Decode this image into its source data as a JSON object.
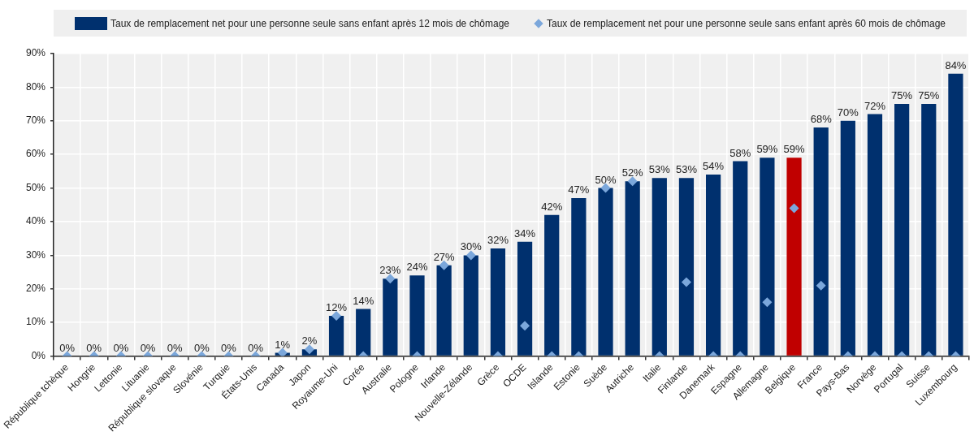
{
  "chart_data": {
    "type": "bar",
    "categories": [
      "République tchèque",
      "Hongrie",
      "Lettonie",
      "Lituanie",
      "République slovaque",
      "Slovénie",
      "Turquie",
      "États-Unis",
      "Canada",
      "Japon",
      "Royaume-Uni",
      "Corée",
      "Australie",
      "Pologne",
      "Irlande",
      "Nouvelle-Zélande",
      "Grèce",
      "OCDE",
      "Islande",
      "Estonie",
      "Suède",
      "Autriche",
      "Italie",
      "Finlande",
      "Danemark",
      "Espagne",
      "Allemagne",
      "Belgique",
      "France",
      "Pays-Bas",
      "Norvège",
      "Portugal",
      "Suisse",
      "Luxembourg"
    ],
    "series": [
      {
        "name": "Taux de remplacement net pour une personne seule sans enfant après 12 mois de chômage",
        "color": "#00306e",
        "colors": [
          "#00306e",
          "#00306e",
          "#00306e",
          "#00306e",
          "#00306e",
          "#00306e",
          "#00306e",
          "#00306e",
          "#00306e",
          "#00306e",
          "#00306e",
          "#00306e",
          "#00306e",
          "#00306e",
          "#00306e",
          "#00306e",
          "#00306e",
          "#00306e",
          "#00306e",
          "#00306e",
          "#00306e",
          "#00306e",
          "#00306e",
          "#00306e",
          "#00306e",
          "#00306e",
          "#00306e",
          "#c00000",
          "#00306e",
          "#00306e",
          "#00306e",
          "#00306e",
          "#00306e",
          "#00306e"
        ],
        "values": [
          0,
          0,
          0,
          0,
          0,
          0,
          0,
          0,
          1,
          2,
          12,
          14,
          23,
          24,
          27,
          30,
          32,
          34,
          42,
          47,
          50,
          52,
          53,
          53,
          54,
          58,
          59,
          59,
          68,
          70,
          72,
          75,
          75,
          84
        ],
        "value_labels": [
          "0%",
          "0%",
          "0%",
          "0%",
          "0%",
          "0%",
          "0%",
          "0%",
          "1%",
          "2%",
          "12%",
          "14%",
          "23%",
          "24%",
          "27%",
          "30%",
          "32%",
          "34%",
          "42%",
          "47%",
          "50%",
          "52%",
          "53%",
          "53%",
          "54%",
          "58%",
          "59%",
          "59%",
          "68%",
          "70%",
          "72%",
          "75%",
          "75%",
          "84%"
        ]
      },
      {
        "type": "scatter",
        "name": "Taux de remplacement net pour une personne seule sans enfant après 60 mois de chômage",
        "color": "#7ba7db",
        "marker": "diamond",
        "x": [
          "République tchèque",
          "Hongrie",
          "Lettonie",
          "Lituanie",
          "République slovaque",
          "Slovénie",
          "Turquie",
          "États-Unis",
          "Canada",
          "Japon",
          "Royaume-Uni",
          "Corée",
          "Australie",
          "Pologne",
          "Irlande",
          "Nouvelle-Zélande",
          "Grèce",
          "OCDE",
          "Islande",
          "Estonie",
          "Suède",
          "Autriche",
          "Italie",
          "Finlande",
          "Danemark",
          "Espagne",
          "Allemagne",
          "Belgique",
          "France",
          "Pays-Bas",
          "Norvège",
          "Portugal",
          "Suisse",
          "Luxembourg"
        ],
        "values": [
          0,
          0,
          0,
          0,
          0,
          0,
          0,
          0,
          1,
          2,
          12,
          0,
          23,
          0,
          27,
          30,
          0,
          9,
          0,
          0,
          50,
          52,
          0,
          22,
          0,
          0,
          16,
          44,
          21,
          0,
          0,
          0,
          0,
          0
        ]
      }
    ],
    "ylim": [
      0,
      90
    ],
    "yticks": [
      {
        "value": 0,
        "label": "0%"
      },
      {
        "value": 10,
        "label": "10%"
      },
      {
        "value": 20,
        "label": "20%"
      },
      {
        "value": 30,
        "label": "30%"
      },
      {
        "value": 40,
        "label": "40%"
      },
      {
        "value": 50,
        "label": "50%"
      },
      {
        "value": 60,
        "label": "60%"
      },
      {
        "value": 70,
        "label": "70%"
      },
      {
        "value": 80,
        "label": "80%"
      },
      {
        "value": 90,
        "label": "90%"
      }
    ],
    "grid": true,
    "legend": "top"
  }
}
